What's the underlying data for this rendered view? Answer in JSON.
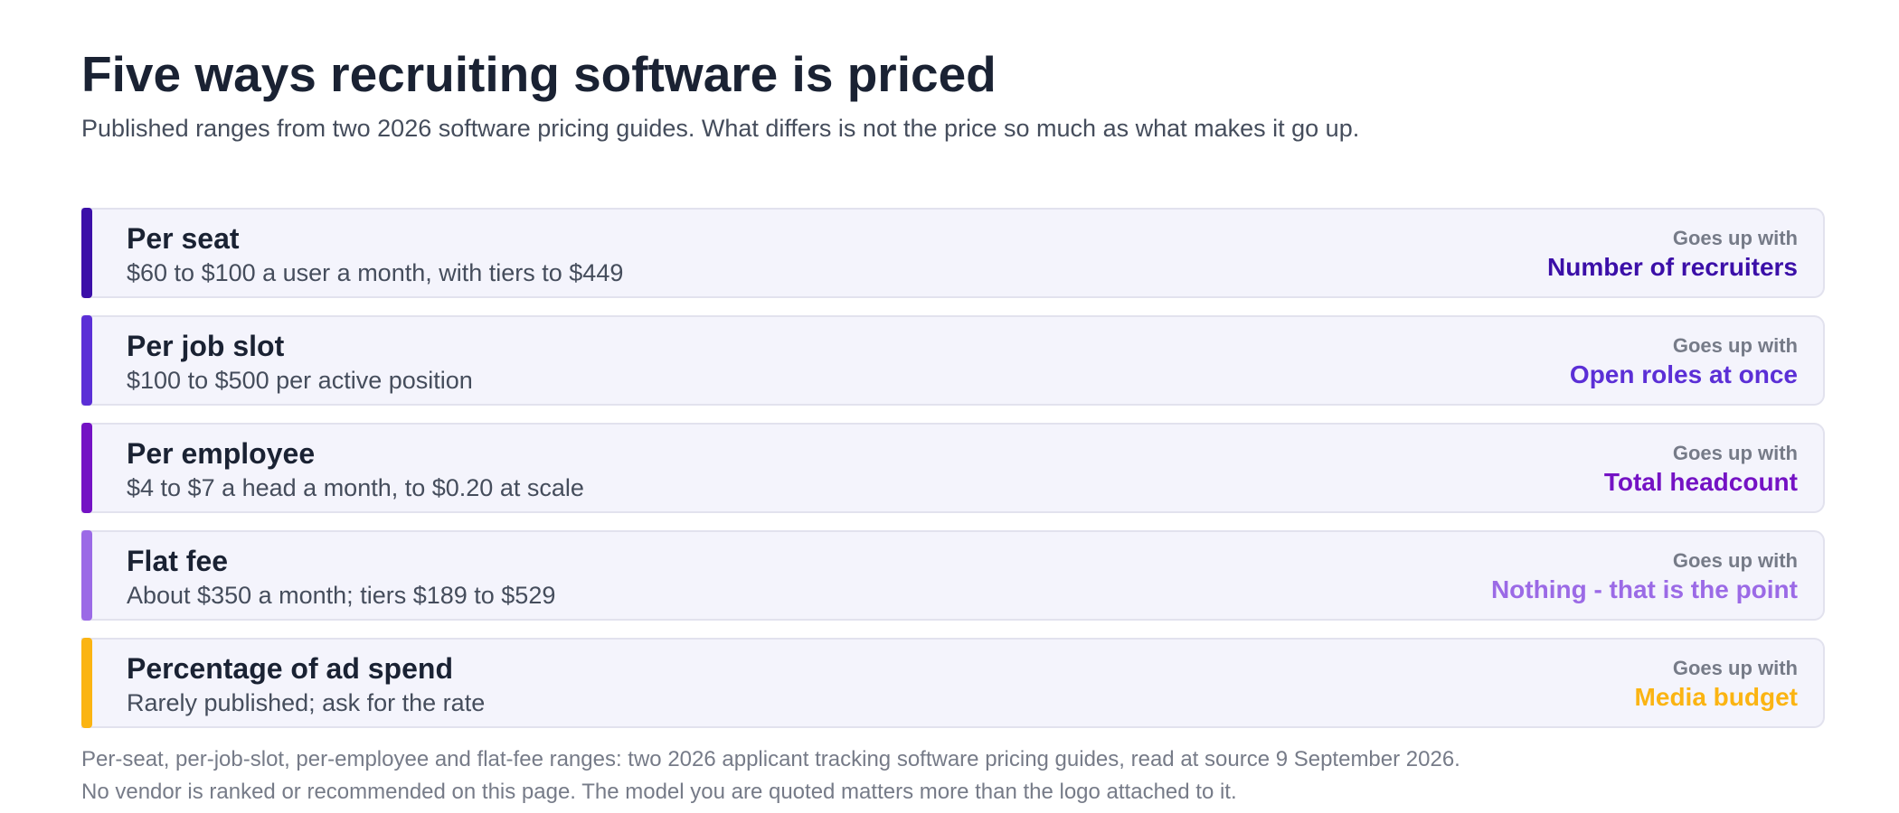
{
  "title": "Five ways recruiting software is priced",
  "subtitle": "Published ranges from two 2026 software pricing guides. What differs is not the price so much as what makes it go up.",
  "rows": [
    {
      "name": "Per seat",
      "range": "$60 to $100 a user a month, with tiers to $449",
      "goes_up_label": "Goes up with",
      "driver": "Number of recruiters",
      "color": "#3b0fa8"
    },
    {
      "name": "Per job slot",
      "range": "$100 to $500 per active position",
      "goes_up_label": "Goes up with",
      "driver": "Open roles at once",
      "color": "#5b2fd6"
    },
    {
      "name": "Per employee",
      "range": "$4 to $7 a head a month, to $0.20 at scale",
      "goes_up_label": "Goes up with",
      "driver": "Total headcount",
      "color": "#7412c4"
    },
    {
      "name": "Flat fee",
      "range": "About $350 a month; tiers $189 to $529",
      "goes_up_label": "Goes up with",
      "driver": "Nothing - that is the point",
      "color": "#9b6ae6"
    },
    {
      "name": "Percentage of ad spend",
      "range": "Rarely published; ask for the rate",
      "goes_up_label": "Goes up with",
      "driver": "Media budget",
      "color": "#fbb412"
    }
  ],
  "footnote": {
    "line1": "Per-seat, per-job-slot, per-employee and flat-fee ranges: two 2026 applicant tracking software pricing guides, read at source 9 September 2026.",
    "line2": "No vendor is ranked or recommended on this page. The model you are quoted matters more than the logo attached to it."
  }
}
